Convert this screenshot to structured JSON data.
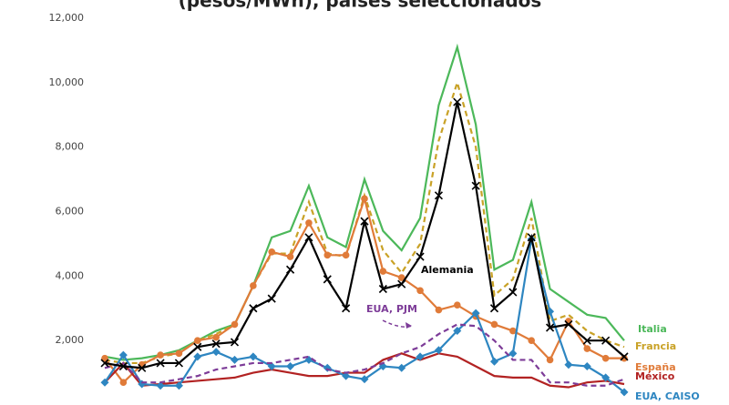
{
  "chart_data": {
    "type": "line",
    "title": "(pesos/MWh), países seleccionados",
    "categories": [
      null,
      null,
      null,
      null,
      null,
      null,
      null,
      null,
      null,
      null,
      null,
      null,
      null,
      null,
      null,
      null,
      null,
      null,
      null,
      null,
      null,
      null,
      null,
      null,
      null,
      null,
      null,
      null,
      null
    ],
    "ylim": [
      0,
      12000
    ],
    "yticks": [
      {
        "value": 2000,
        "label": "2,000"
      },
      {
        "value": 4000,
        "label": "4,000"
      },
      {
        "value": 6000,
        "label": "6,000"
      },
      {
        "value": 8000,
        "label": "8,000"
      },
      {
        "value": 10000,
        "label": "10,000"
      },
      {
        "value": 12000,
        "label": "12,000"
      }
    ],
    "grid": false,
    "series": [
      {
        "name": "Italia",
        "color": "#4cb85a",
        "dash": false,
        "marker": "none",
        "values": [
          1500,
          1400,
          1450,
          1550,
          1700,
          2000,
          2300,
          2500,
          3700,
          5200,
          5400,
          6800,
          5200,
          4900,
          7000,
          5400,
          4800,
          5800,
          9300,
          11100,
          8700,
          4200,
          4500,
          6300,
          3600,
          3200,
          2800,
          2700,
          2000
        ]
      },
      {
        "name": "Francia",
        "color": "#c9a227",
        "dash": true,
        "marker": "none",
        "values": [
          1400,
          1300,
          1300,
          1500,
          1600,
          2000,
          2200,
          2500,
          3700,
          4700,
          4700,
          6300,
          4700,
          4600,
          6500,
          4800,
          4100,
          5000,
          8200,
          10000,
          8000,
          3400,
          3900,
          5800,
          2600,
          2800,
          2300,
          2000,
          1800
        ]
      },
      {
        "name": "España",
        "color": "#e07b39",
        "dash": false,
        "marker": "circle",
        "values": [
          1450,
          700,
          1250,
          1550,
          1600,
          2000,
          2100,
          2500,
          3700,
          4750,
          4600,
          5650,
          4650,
          4650,
          6400,
          4150,
          3950,
          3550,
          2950,
          3100,
          2750,
          2500,
          2300,
          2000,
          1400,
          2600,
          1750,
          1450,
          1450
        ]
      },
      {
        "name": "México",
        "color": "#b22222",
        "dash": false,
        "marker": "none",
        "values": [
          700,
          1300,
          600,
          650,
          700,
          750,
          800,
          850,
          1000,
          1100,
          1000,
          900,
          900,
          1000,
          1000,
          1400,
          1600,
          1400,
          1600,
          1500,
          1200,
          900,
          850,
          850,
          600,
          550,
          700,
          750,
          650
        ]
      },
      {
        "name": "EUA, CAISO",
        "color": "#2e86c1",
        "dash": false,
        "marker": "diamond",
        "values": [
          700,
          1550,
          650,
          600,
          600,
          1500,
          1650,
          1400,
          1500,
          1200,
          1200,
          1400,
          1150,
          900,
          800,
          1200,
          1150,
          1500,
          1700,
          2300,
          2850,
          1350,
          1600,
          5150,
          2900,
          1250,
          1200,
          850,
          400
        ]
      },
      {
        "name": "EUA, PJM",
        "color": "#7d3c98",
        "dash": true,
        "marker": "none",
        "values": [
          1150,
          1300,
          700,
          700,
          800,
          900,
          1100,
          1200,
          1300,
          1300,
          1400,
          1500,
          1100,
          1000,
          1100,
          1300,
          1600,
          1800,
          2200,
          2500,
          2450,
          2000,
          1400,
          1400,
          700,
          700,
          600,
          600,
          800
        ]
      },
      {
        "name": "Alemania",
        "color": "#000000",
        "dash": false,
        "marker": "x",
        "values": [
          1300,
          1200,
          1150,
          1300,
          1300,
          1800,
          1900,
          1950,
          3000,
          3300,
          4200,
          5200,
          3900,
          3000,
          5700,
          3600,
          3750,
          4600,
          6500,
          9400,
          6800,
          3000,
          3500,
          5200,
          2400,
          2500,
          2000,
          2000,
          1500
        ]
      }
    ]
  }
}
